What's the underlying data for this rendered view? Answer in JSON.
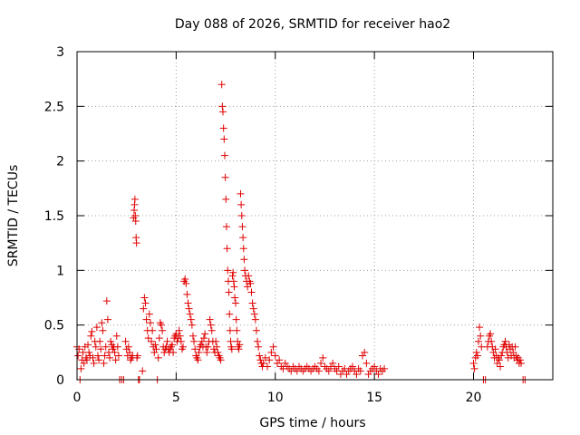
{
  "chart_data": {
    "type": "scatter",
    "title": "Day 088 of 2026, SRMTID for receiver hao2",
    "xlabel": "GPS time / hours",
    "ylabel": "SRMTID / TECUs",
    "xlim": [
      0,
      24
    ],
    "ylim": [
      0,
      3
    ],
    "xticks": [
      0,
      5,
      10,
      15,
      20
    ],
    "xtick_labels": [
      "0",
      "5",
      "10",
      "15",
      "20"
    ],
    "yticks": [
      0,
      0.5,
      1,
      1.5,
      2,
      2.5,
      3
    ],
    "ytick_labels": [
      "0",
      "0.5",
      "1",
      "1.5",
      "2",
      "2.5",
      "3"
    ],
    "grid": true,
    "marker": "+",
    "color": "#e00000",
    "series": [
      {
        "name": "hao2",
        "points": [
          [
            0.0,
            0.3
          ],
          [
            0.05,
            0.22
          ],
          [
            0.1,
            0.28
          ],
          [
            0.15,
            0.0
          ],
          [
            0.2,
            0.1
          ],
          [
            0.25,
            0.18
          ],
          [
            0.3,
            0.25
          ],
          [
            0.35,
            0.15
          ],
          [
            0.4,
            0.3
          ],
          [
            0.45,
            0.2
          ],
          [
            0.5,
            0.18
          ],
          [
            0.55,
            0.32
          ],
          [
            0.6,
            0.25
          ],
          [
            0.65,
            0.22
          ],
          [
            0.7,
            0.4
          ],
          [
            0.75,
            0.44
          ],
          [
            0.8,
            0.2
          ],
          [
            0.85,
            0.15
          ],
          [
            0.9,
            0.35
          ],
          [
            0.95,
            0.3
          ],
          [
            1.0,
            0.48
          ],
          [
            1.05,
            0.22
          ],
          [
            1.1,
            0.18
          ],
          [
            1.15,
            0.35
          ],
          [
            1.2,
            0.28
          ],
          [
            1.25,
            0.52
          ],
          [
            1.3,
            0.45
          ],
          [
            1.35,
            0.15
          ],
          [
            1.4,
            0.22
          ],
          [
            1.45,
            0.3
          ],
          [
            1.5,
            0.72
          ],
          [
            1.55,
            0.55
          ],
          [
            1.6,
            0.25
          ],
          [
            1.65,
            0.2
          ],
          [
            1.7,
            0.35
          ],
          [
            1.75,
            0.32
          ],
          [
            1.8,
            0.28
          ],
          [
            1.85,
            0.3
          ],
          [
            1.9,
            0.25
          ],
          [
            1.95,
            0.18
          ],
          [
            2.0,
            0.4
          ],
          [
            2.05,
            0.3
          ],
          [
            2.1,
            0.22
          ],
          [
            2.15,
            0.0
          ],
          [
            2.25,
            0.0
          ],
          [
            2.35,
            0.0
          ],
          [
            2.45,
            0.35
          ],
          [
            2.5,
            0.28
          ],
          [
            2.55,
            0.22
          ],
          [
            2.6,
            0.3
          ],
          [
            2.65,
            0.25
          ],
          [
            2.7,
            0.18
          ],
          [
            2.75,
            0.2
          ],
          [
            2.8,
            0.22
          ],
          [
            2.85,
            1.48
          ],
          [
            2.88,
            1.55
          ],
          [
            2.9,
            1.6
          ],
          [
            2.92,
            1.65
          ],
          [
            2.94,
            1.5
          ],
          [
            2.96,
            1.45
          ],
          [
            2.98,
            1.3
          ],
          [
            3.0,
            1.25
          ],
          [
            3.02,
            0.2
          ],
          [
            3.05,
            0.22
          ],
          [
            3.1,
            0.0
          ],
          [
            3.15,
            0.0
          ],
          [
            3.3,
            0.08
          ],
          [
            3.35,
            0.65
          ],
          [
            3.4,
            0.75
          ],
          [
            3.45,
            0.7
          ],
          [
            3.5,
            0.55
          ],
          [
            3.55,
            0.45
          ],
          [
            3.6,
            0.38
          ],
          [
            3.65,
            0.6
          ],
          [
            3.7,
            0.52
          ],
          [
            3.75,
            0.35
          ],
          [
            3.8,
            0.45
          ],
          [
            3.85,
            0.3
          ],
          [
            3.9,
            0.25
          ],
          [
            3.95,
            0.32
          ],
          [
            4.0,
            0.28
          ],
          [
            4.05,
            0.0
          ],
          [
            4.1,
            0.2
          ],
          [
            4.15,
            0.38
          ],
          [
            4.2,
            0.52
          ],
          [
            4.25,
            0.5
          ],
          [
            4.3,
            0.45
          ],
          [
            4.35,
            0.3
          ],
          [
            4.4,
            0.25
          ],
          [
            4.45,
            0.28
          ],
          [
            4.5,
            0.3
          ],
          [
            4.55,
            0.35
          ],
          [
            4.6,
            0.28
          ],
          [
            4.65,
            0.25
          ],
          [
            4.7,
            0.28
          ],
          [
            4.75,
            0.3
          ],
          [
            4.8,
            0.32
          ],
          [
            4.85,
            0.25
          ],
          [
            4.9,
            0.38
          ],
          [
            4.95,
            0.4
          ],
          [
            5.0,
            0.42
          ],
          [
            5.05,
            0.35
          ],
          [
            5.1,
            0.38
          ],
          [
            5.15,
            0.45
          ],
          [
            5.2,
            0.4
          ],
          [
            5.25,
            0.35
          ],
          [
            5.3,
            0.28
          ],
          [
            5.35,
            0.3
          ],
          [
            5.4,
            0.9
          ],
          [
            5.45,
            0.92
          ],
          [
            5.5,
            0.88
          ],
          [
            5.55,
            0.78
          ],
          [
            5.6,
            0.7
          ],
          [
            5.65,
            0.65
          ],
          [
            5.7,
            0.6
          ],
          [
            5.75,
            0.55
          ],
          [
            5.8,
            0.5
          ],
          [
            5.85,
            0.4
          ],
          [
            5.9,
            0.35
          ],
          [
            5.95,
            0.28
          ],
          [
            6.0,
            0.22
          ],
          [
            6.05,
            0.2
          ],
          [
            6.1,
            0.18
          ],
          [
            6.15,
            0.25
          ],
          [
            6.2,
            0.3
          ],
          [
            6.25,
            0.32
          ],
          [
            6.3,
            0.35
          ],
          [
            6.35,
            0.3
          ],
          [
            6.4,
            0.38
          ],
          [
            6.45,
            0.42
          ],
          [
            6.5,
            0.3
          ],
          [
            6.55,
            0.25
          ],
          [
            6.6,
            0.3
          ],
          [
            6.65,
            0.35
          ],
          [
            6.7,
            0.55
          ],
          [
            6.75,
            0.5
          ],
          [
            6.8,
            0.45
          ],
          [
            6.85,
            0.35
          ],
          [
            6.9,
            0.28
          ],
          [
            6.95,
            0.25
          ],
          [
            7.0,
            0.35
          ],
          [
            7.05,
            0.3
          ],
          [
            7.1,
            0.25
          ],
          [
            7.15,
            0.22
          ],
          [
            7.2,
            0.2
          ],
          [
            7.25,
            0.18
          ],
          [
            7.3,
            2.7
          ],
          [
            7.33,
            2.5
          ],
          [
            7.36,
            2.45
          ],
          [
            7.39,
            2.3
          ],
          [
            7.42,
            2.2
          ],
          [
            7.45,
            2.05
          ],
          [
            7.48,
            1.85
          ],
          [
            7.51,
            1.65
          ],
          [
            7.54,
            1.4
          ],
          [
            7.57,
            1.2
          ],
          [
            7.6,
            1.0
          ],
          [
            7.63,
            0.9
          ],
          [
            7.66,
            0.8
          ],
          [
            7.69,
            0.6
          ],
          [
            7.72,
            0.45
          ],
          [
            7.75,
            0.35
          ],
          [
            7.78,
            0.3
          ],
          [
            7.81,
            0.28
          ],
          [
            7.84,
            0.95
          ],
          [
            7.87,
            0.98
          ],
          [
            7.9,
            0.9
          ],
          [
            7.93,
            0.85
          ],
          [
            7.96,
            0.75
          ],
          [
            8.0,
            0.7
          ],
          [
            8.03,
            0.55
          ],
          [
            8.06,
            0.45
          ],
          [
            8.1,
            0.35
          ],
          [
            8.13,
            0.3
          ],
          [
            8.16,
            0.28
          ],
          [
            8.2,
            0.32
          ],
          [
            8.25,
            1.7
          ],
          [
            8.28,
            1.6
          ],
          [
            8.31,
            1.5
          ],
          [
            8.34,
            1.4
          ],
          [
            8.37,
            1.3
          ],
          [
            8.4,
            1.2
          ],
          [
            8.43,
            1.1
          ],
          [
            8.46,
            1.0
          ],
          [
            8.5,
            0.95
          ],
          [
            8.55,
            0.9
          ],
          [
            8.6,
            0.85
          ],
          [
            8.65,
            0.95
          ],
          [
            8.7,
            0.9
          ],
          [
            8.75,
            0.88
          ],
          [
            8.8,
            0.8
          ],
          [
            8.85,
            0.7
          ],
          [
            8.9,
            0.65
          ],
          [
            8.95,
            0.6
          ],
          [
            9.0,
            0.55
          ],
          [
            9.05,
            0.45
          ],
          [
            9.1,
            0.35
          ],
          [
            9.15,
            0.3
          ],
          [
            9.2,
            0.22
          ],
          [
            9.25,
            0.18
          ],
          [
            9.3,
            0.15
          ],
          [
            9.35,
            0.12
          ],
          [
            9.4,
            0.15
          ],
          [
            9.5,
            0.2
          ],
          [
            9.6,
            0.12
          ],
          [
            9.7,
            0.18
          ],
          [
            9.8,
            0.25
          ],
          [
            9.9,
            0.3
          ],
          [
            10.0,
            0.22
          ],
          [
            10.1,
            0.15
          ],
          [
            10.2,
            0.18
          ],
          [
            10.3,
            0.12
          ],
          [
            10.4,
            0.1
          ],
          [
            10.5,
            0.15
          ],
          [
            10.6,
            0.12
          ],
          [
            10.7,
            0.1
          ],
          [
            10.8,
            0.08
          ],
          [
            10.9,
            0.12
          ],
          [
            11.0,
            0.1
          ],
          [
            11.1,
            0.08
          ],
          [
            11.2,
            0.12
          ],
          [
            11.3,
            0.1
          ],
          [
            11.4,
            0.08
          ],
          [
            11.5,
            0.1
          ],
          [
            11.6,
            0.12
          ],
          [
            11.7,
            0.1
          ],
          [
            11.8,
            0.08
          ],
          [
            11.9,
            0.1
          ],
          [
            12.0,
            0.12
          ],
          [
            12.1,
            0.1
          ],
          [
            12.2,
            0.08
          ],
          [
            12.3,
            0.15
          ],
          [
            12.4,
            0.2
          ],
          [
            12.5,
            0.12
          ],
          [
            12.6,
            0.1
          ],
          [
            12.7,
            0.08
          ],
          [
            12.8,
            0.12
          ],
          [
            12.9,
            0.15
          ],
          [
            13.0,
            0.1
          ],
          [
            13.1,
            0.08
          ],
          [
            13.2,
            0.12
          ],
          [
            13.3,
            0.05
          ],
          [
            13.4,
            0.08
          ],
          [
            13.5,
            0.1
          ],
          [
            13.6,
            0.05
          ],
          [
            13.7,
            0.08
          ],
          [
            13.8,
            0.1
          ],
          [
            13.9,
            0.12
          ],
          [
            14.0,
            0.08
          ],
          [
            14.1,
            0.05
          ],
          [
            14.2,
            0.1
          ],
          [
            14.3,
            0.08
          ],
          [
            14.4,
            0.22
          ],
          [
            14.5,
            0.25
          ],
          [
            14.6,
            0.15
          ],
          [
            14.7,
            0.05
          ],
          [
            14.8,
            0.08
          ],
          [
            14.9,
            0.1
          ],
          [
            15.0,
            0.12
          ],
          [
            15.1,
            0.08
          ],
          [
            15.2,
            0.05
          ],
          [
            15.3,
            0.1
          ],
          [
            15.4,
            0.08
          ],
          [
            15.5,
            0.1
          ],
          [
            20.0,
            0.15
          ],
          [
            20.05,
            0.1
          ],
          [
            20.1,
            0.2
          ],
          [
            20.15,
            0.25
          ],
          [
            20.2,
            0.22
          ],
          [
            20.25,
            0.35
          ],
          [
            20.3,
            0.48
          ],
          [
            20.35,
            0.4
          ],
          [
            20.4,
            0.3
          ],
          [
            20.5,
            0.0
          ],
          [
            20.6,
            0.0
          ],
          [
            20.7,
            0.3
          ],
          [
            20.75,
            0.35
          ],
          [
            20.8,
            0.4
          ],
          [
            20.85,
            0.42
          ],
          [
            20.9,
            0.35
          ],
          [
            20.95,
            0.3
          ],
          [
            21.0,
            0.25
          ],
          [
            21.05,
            0.2
          ],
          [
            21.1,
            0.28
          ],
          [
            21.15,
            0.22
          ],
          [
            21.2,
            0.15
          ],
          [
            21.25,
            0.2
          ],
          [
            21.3,
            0.18
          ],
          [
            21.35,
            0.12
          ],
          [
            21.4,
            0.22
          ],
          [
            21.45,
            0.25
          ],
          [
            21.5,
            0.3
          ],
          [
            21.55,
            0.32
          ],
          [
            21.6,
            0.35
          ],
          [
            21.65,
            0.3
          ],
          [
            21.7,
            0.25
          ],
          [
            21.75,
            0.2
          ],
          [
            21.8,
            0.32
          ],
          [
            21.85,
            0.28
          ],
          [
            21.9,
            0.22
          ],
          [
            21.95,
            0.3
          ],
          [
            22.0,
            0.25
          ],
          [
            22.05,
            0.2
          ],
          [
            22.1,
            0.3
          ],
          [
            22.15,
            0.22
          ],
          [
            22.2,
            0.18
          ],
          [
            22.25,
            0.2
          ],
          [
            22.3,
            0.15
          ],
          [
            22.35,
            0.18
          ],
          [
            22.4,
            0.15
          ],
          [
            22.5,
            0.0
          ],
          [
            22.6,
            0.0
          ]
        ]
      }
    ]
  }
}
